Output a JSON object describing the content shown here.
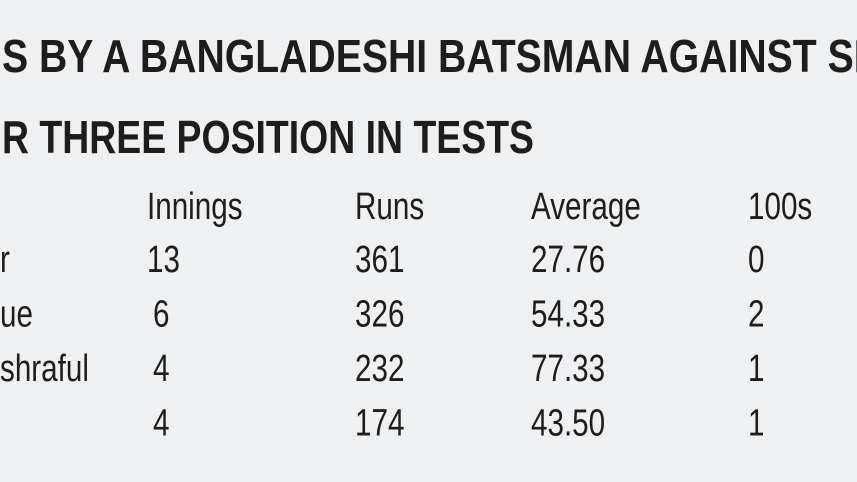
{
  "header": {
    "title": [
      "S BY A BANGLADESHI BATSMAN AGAINST SR",
      "R THREE POSITION IN TESTS"
    ]
  },
  "table": {
    "columns": [
      "Innings",
      "Runs",
      "Average",
      "100s"
    ],
    "rows": [
      {
        "name": "r",
        "cells": [
          "13",
          "361",
          "27.76",
          "0"
        ]
      },
      {
        "name": "ue",
        "cells": [
          "6",
          "326",
          "54.33",
          "2"
        ]
      },
      {
        "name": "shraful",
        "cells": [
          "4",
          "232",
          "77.33",
          "1"
        ]
      },
      {
        "cells": [
          "4",
          "174",
          "43.50",
          "1"
        ]
      }
    ]
  }
}
